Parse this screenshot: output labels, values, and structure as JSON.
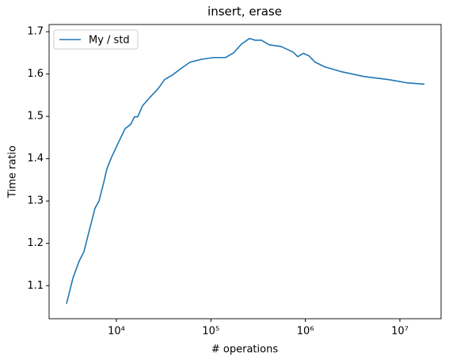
{
  "chart_data": {
    "type": "line",
    "title": "insert, erase",
    "x_label": "# operations",
    "y_label": "Time ratio",
    "x_log": true,
    "legend": "upper left",
    "grid": false,
    "xlim": [
      1941,
      27300000
    ],
    "ylim": [
      1.022,
      1.717
    ],
    "xticks": [
      {
        "value": 10000,
        "label": "10⁴"
      },
      {
        "value": 100000,
        "label": "10⁵"
      },
      {
        "value": 1000000,
        "label": "10⁶"
      },
      {
        "value": 10000000,
        "label": "10⁷"
      }
    ],
    "yticks": [
      1.1,
      1.2,
      1.3,
      1.4,
      1.5,
      1.6,
      1.7
    ],
    "series": [
      {
        "name": "My / std",
        "color": "#1f77b4",
        "x": [
          2965,
          3460,
          4035,
          4530,
          5190,
          5940,
          6550,
          7350,
          7930,
          8910,
          10400,
          12360,
          14150,
          15600,
          16830,
          18900,
          22900,
          27800,
          32400,
          39400,
          49600,
          60200,
          80400,
          107000,
          143000,
          174000,
          211000,
          256000,
          293000,
          342000,
          415000,
          554000,
          740000,
          832000,
          951000,
          1090000,
          1270000,
          1600000,
          2360000,
          4200000,
          7500000,
          12100000,
          18200000
        ],
        "values": [
          1.057,
          1.117,
          1.158,
          1.18,
          1.232,
          1.283,
          1.3,
          1.344,
          1.376,
          1.404,
          1.436,
          1.471,
          1.481,
          1.499,
          1.499,
          1.525,
          1.546,
          1.566,
          1.587,
          1.598,
          1.615,
          1.628,
          1.635,
          1.639,
          1.639,
          1.65,
          1.671,
          1.684,
          1.68,
          1.68,
          1.669,
          1.665,
          1.652,
          1.641,
          1.649,
          1.643,
          1.628,
          1.617,
          1.606,
          1.594,
          1.587,
          1.579,
          1.576
        ]
      }
    ]
  }
}
